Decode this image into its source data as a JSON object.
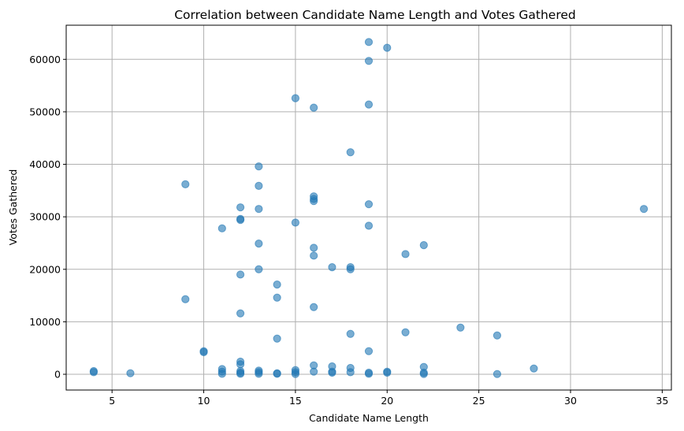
{
  "chart_data": {
    "type": "scatter",
    "title": "Correlation between Candidate Name Length and Votes Gathered",
    "xlabel": "Candidate Name Length",
    "ylabel": "Votes Gathered",
    "xlim": [
      2.5,
      35.5
    ],
    "ylim": [
      -3000,
      66500
    ],
    "x_ticks": [
      5,
      10,
      15,
      20,
      25,
      30,
      35
    ],
    "y_ticks": [
      0,
      10000,
      20000,
      30000,
      40000,
      50000,
      60000
    ],
    "grid": true,
    "marker_color": "#1f77b4",
    "points": [
      {
        "x": 4,
        "y": 600
      },
      {
        "x": 4,
        "y": 400
      },
      {
        "x": 6,
        "y": 200
      },
      {
        "x": 9,
        "y": 36200
      },
      {
        "x": 9,
        "y": 14300
      },
      {
        "x": 10,
        "y": 4400
      },
      {
        "x": 10,
        "y": 4200
      },
      {
        "x": 11,
        "y": 27800
      },
      {
        "x": 11,
        "y": 1000
      },
      {
        "x": 11,
        "y": 500
      },
      {
        "x": 11,
        "y": 100
      },
      {
        "x": 12,
        "y": 31800
      },
      {
        "x": 12,
        "y": 29600
      },
      {
        "x": 12,
        "y": 29400
      },
      {
        "x": 12,
        "y": 19000
      },
      {
        "x": 12,
        "y": 11600
      },
      {
        "x": 12,
        "y": 2400
      },
      {
        "x": 12,
        "y": 1900
      },
      {
        "x": 12,
        "y": 600
      },
      {
        "x": 12,
        "y": 300
      },
      {
        "x": 12,
        "y": 100
      },
      {
        "x": 13,
        "y": 39600
      },
      {
        "x": 13,
        "y": 35900
      },
      {
        "x": 13,
        "y": 31500
      },
      {
        "x": 13,
        "y": 24900
      },
      {
        "x": 13,
        "y": 20000
      },
      {
        "x": 13,
        "y": 700
      },
      {
        "x": 13,
        "y": 400
      },
      {
        "x": 13,
        "y": 100
      },
      {
        "x": 14,
        "y": 17100
      },
      {
        "x": 14,
        "y": 14600
      },
      {
        "x": 14,
        "y": 6800
      },
      {
        "x": 14,
        "y": 200
      },
      {
        "x": 14,
        "y": 100
      },
      {
        "x": 15,
        "y": 52600
      },
      {
        "x": 15,
        "y": 28900
      },
      {
        "x": 15,
        "y": 800
      },
      {
        "x": 15,
        "y": 400
      },
      {
        "x": 15,
        "y": 50
      },
      {
        "x": 16,
        "y": 50800
      },
      {
        "x": 16,
        "y": 33900
      },
      {
        "x": 16,
        "y": 33400
      },
      {
        "x": 16,
        "y": 33000
      },
      {
        "x": 16,
        "y": 24100
      },
      {
        "x": 16,
        "y": 22600
      },
      {
        "x": 16,
        "y": 12800
      },
      {
        "x": 16,
        "y": 1700
      },
      {
        "x": 16,
        "y": 500
      },
      {
        "x": 17,
        "y": 20400
      },
      {
        "x": 17,
        "y": 1500
      },
      {
        "x": 17,
        "y": 500
      },
      {
        "x": 17,
        "y": 300
      },
      {
        "x": 18,
        "y": 42300
      },
      {
        "x": 18,
        "y": 20400
      },
      {
        "x": 18,
        "y": 20000
      },
      {
        "x": 18,
        "y": 7700
      },
      {
        "x": 18,
        "y": 1200
      },
      {
        "x": 18,
        "y": 400
      },
      {
        "x": 19,
        "y": 63300
      },
      {
        "x": 19,
        "y": 59700
      },
      {
        "x": 19,
        "y": 51400
      },
      {
        "x": 19,
        "y": 32400
      },
      {
        "x": 19,
        "y": 28300
      },
      {
        "x": 19,
        "y": 4400
      },
      {
        "x": 19,
        "y": 300
      },
      {
        "x": 19,
        "y": 100
      },
      {
        "x": 20,
        "y": 62200
      },
      {
        "x": 20,
        "y": 500
      },
      {
        "x": 20,
        "y": 300
      },
      {
        "x": 21,
        "y": 22900
      },
      {
        "x": 21,
        "y": 8000
      },
      {
        "x": 22,
        "y": 24600
      },
      {
        "x": 22,
        "y": 1400
      },
      {
        "x": 22,
        "y": 300
      },
      {
        "x": 22,
        "y": 50
      },
      {
        "x": 24,
        "y": 8900
      },
      {
        "x": 26,
        "y": 7400
      },
      {
        "x": 26,
        "y": 50
      },
      {
        "x": 28,
        "y": 1100
      },
      {
        "x": 34,
        "y": 31500
      }
    ]
  }
}
